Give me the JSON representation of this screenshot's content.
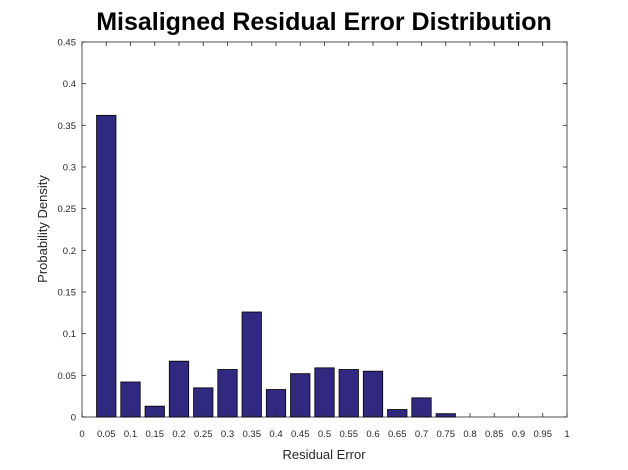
{
  "chart_data": {
    "type": "bar",
    "title": "Misaligned Residual Error Distribution",
    "xlabel": "Residual Error",
    "ylabel": "Probability Density",
    "xlim": [
      0,
      1
    ],
    "ylim": [
      0,
      0.45
    ],
    "x_ticks": [
      "0",
      "0.05",
      "0.1",
      "0.15",
      "0.2",
      "0.25",
      "0.3",
      "0.35",
      "0.4",
      "0.45",
      "0.5",
      "0.55",
      "0.6",
      "0.65",
      "0.7",
      "0.75",
      "0.8",
      "0.85",
      "0.9",
      "0.95",
      "1"
    ],
    "x_tick_values": [
      0,
      0.05,
      0.1,
      0.15,
      0.2,
      0.25,
      0.3,
      0.35,
      0.4,
      0.45,
      0.5,
      0.55,
      0.6,
      0.65,
      0.7,
      0.75,
      0.8,
      0.85,
      0.9,
      0.95,
      1
    ],
    "y_ticks": [
      "0",
      "0.05",
      "0.1",
      "0.15",
      "0.2",
      "0.25",
      "0.3",
      "0.35",
      "0.4",
      "0.45"
    ],
    "y_tick_values": [
      0,
      0.05,
      0.1,
      0.15,
      0.2,
      0.25,
      0.3,
      0.35,
      0.4,
      0.45
    ],
    "bin_width": 0.05,
    "x": [
      0.05,
      0.1,
      0.15,
      0.2,
      0.25,
      0.3,
      0.35,
      0.4,
      0.45,
      0.5,
      0.55,
      0.6,
      0.65,
      0.7,
      0.75,
      0.8,
      0.85,
      0.9,
      0.95
    ],
    "values": [
      0.362,
      0.042,
      0.013,
      0.067,
      0.035,
      0.057,
      0.126,
      0.033,
      0.052,
      0.059,
      0.057,
      0.055,
      0.009,
      0.023,
      0.004,
      0,
      0,
      0,
      0
    ],
    "bar_color": "#31287f",
    "grid": false,
    "legend": "none"
  }
}
